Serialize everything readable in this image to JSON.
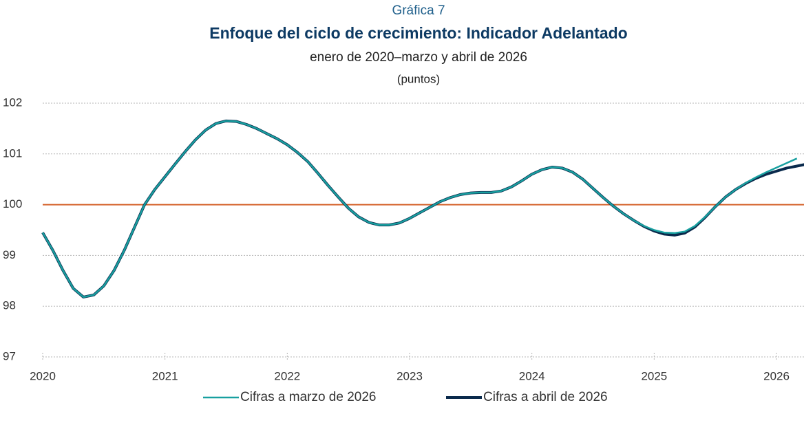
{
  "chart_data": {
    "type": "line",
    "label": "Gráfica 7",
    "title": "Enfoque del ciclo de crecimiento: Indicador Adelantado",
    "subtitle": "enero de 2020–marzo y abril de 2026",
    "unit_label": "(puntos)",
    "x": [
      2020,
      2020.083,
      2020.167,
      2020.25,
      2020.333,
      2020.417,
      2020.5,
      2020.583,
      2020.667,
      2020.75,
      2020.833,
      2020.917,
      2021,
      2021.083,
      2021.167,
      2021.25,
      2021.333,
      2021.417,
      2021.5,
      2021.583,
      2021.667,
      2021.75,
      2021.833,
      2021.917,
      2022,
      2022.083,
      2022.167,
      2022.25,
      2022.333,
      2022.417,
      2022.5,
      2022.583,
      2022.667,
      2022.75,
      2022.833,
      2022.917,
      2023,
      2023.083,
      2023.167,
      2023.25,
      2023.333,
      2023.417,
      2023.5,
      2023.583,
      2023.667,
      2023.75,
      2023.833,
      2023.917,
      2024,
      2024.083,
      2024.167,
      2024.25,
      2024.333,
      2024.417,
      2024.5,
      2024.583,
      2024.667,
      2024.75,
      2024.833,
      2024.917,
      2025,
      2025.083,
      2025.167,
      2025.25,
      2025.333,
      2025.417,
      2025.5,
      2025.583,
      2025.667,
      2025.75,
      2025.833,
      2025.917,
      2026,
      2026.083,
      2026.167,
      2026.25
    ],
    "series": [
      {
        "name": "Cifras a marzo de 2026",
        "color": "#18a0a0",
        "width": 2.5,
        "values": [
          99.45,
          99.1,
          98.7,
          98.35,
          98.18,
          98.22,
          98.4,
          98.7,
          99.1,
          99.55,
          100.0,
          100.3,
          100.55,
          100.8,
          101.05,
          101.28,
          101.47,
          101.6,
          101.65,
          101.64,
          101.58,
          101.5,
          101.4,
          101.3,
          101.18,
          101.03,
          100.85,
          100.62,
          100.38,
          100.15,
          99.93,
          99.76,
          99.65,
          99.6,
          99.6,
          99.64,
          99.73,
          99.84,
          99.95,
          100.06,
          100.14,
          100.2,
          100.23,
          100.24,
          100.24,
          100.27,
          100.35,
          100.47,
          100.6,
          100.69,
          100.74,
          100.72,
          100.64,
          100.5,
          100.32,
          100.14,
          99.97,
          99.82,
          99.69,
          99.58,
          99.5,
          99.45,
          99.44,
          99.47,
          99.58,
          99.76,
          99.96,
          100.15,
          100.3,
          100.43,
          100.54,
          100.64,
          100.73,
          100.82,
          100.91,
          null
        ]
      },
      {
        "name": "Cifras a abril de 2026",
        "color": "#0a2a4c",
        "width": 4,
        "values": [
          99.45,
          99.1,
          98.7,
          98.35,
          98.18,
          98.22,
          98.4,
          98.7,
          99.1,
          99.55,
          100.0,
          100.3,
          100.55,
          100.8,
          101.05,
          101.28,
          101.47,
          101.6,
          101.65,
          101.64,
          101.58,
          101.5,
          101.4,
          101.3,
          101.18,
          101.03,
          100.85,
          100.62,
          100.38,
          100.15,
          99.93,
          99.76,
          99.65,
          99.6,
          99.6,
          99.64,
          99.73,
          99.84,
          99.95,
          100.06,
          100.14,
          100.2,
          100.23,
          100.24,
          100.24,
          100.27,
          100.35,
          100.47,
          100.6,
          100.69,
          100.74,
          100.72,
          100.64,
          100.5,
          100.32,
          100.14,
          99.97,
          99.82,
          99.69,
          99.57,
          99.48,
          99.42,
          99.4,
          99.44,
          99.56,
          99.75,
          99.96,
          100.15,
          100.3,
          100.42,
          100.52,
          100.6,
          100.66,
          100.72,
          100.76,
          100.8
        ]
      }
    ],
    "reference_line": {
      "value": 100,
      "color": "#d4622a"
    },
    "xlim": [
      2020,
      2026.225
    ],
    "xticks": [
      2020,
      2021,
      2022,
      2023,
      2024,
      2025,
      2026
    ],
    "ylim": [
      97,
      102
    ],
    "yticks": [
      97,
      98,
      99,
      100,
      101,
      102
    ],
    "grid": true,
    "legend": "bottom"
  }
}
